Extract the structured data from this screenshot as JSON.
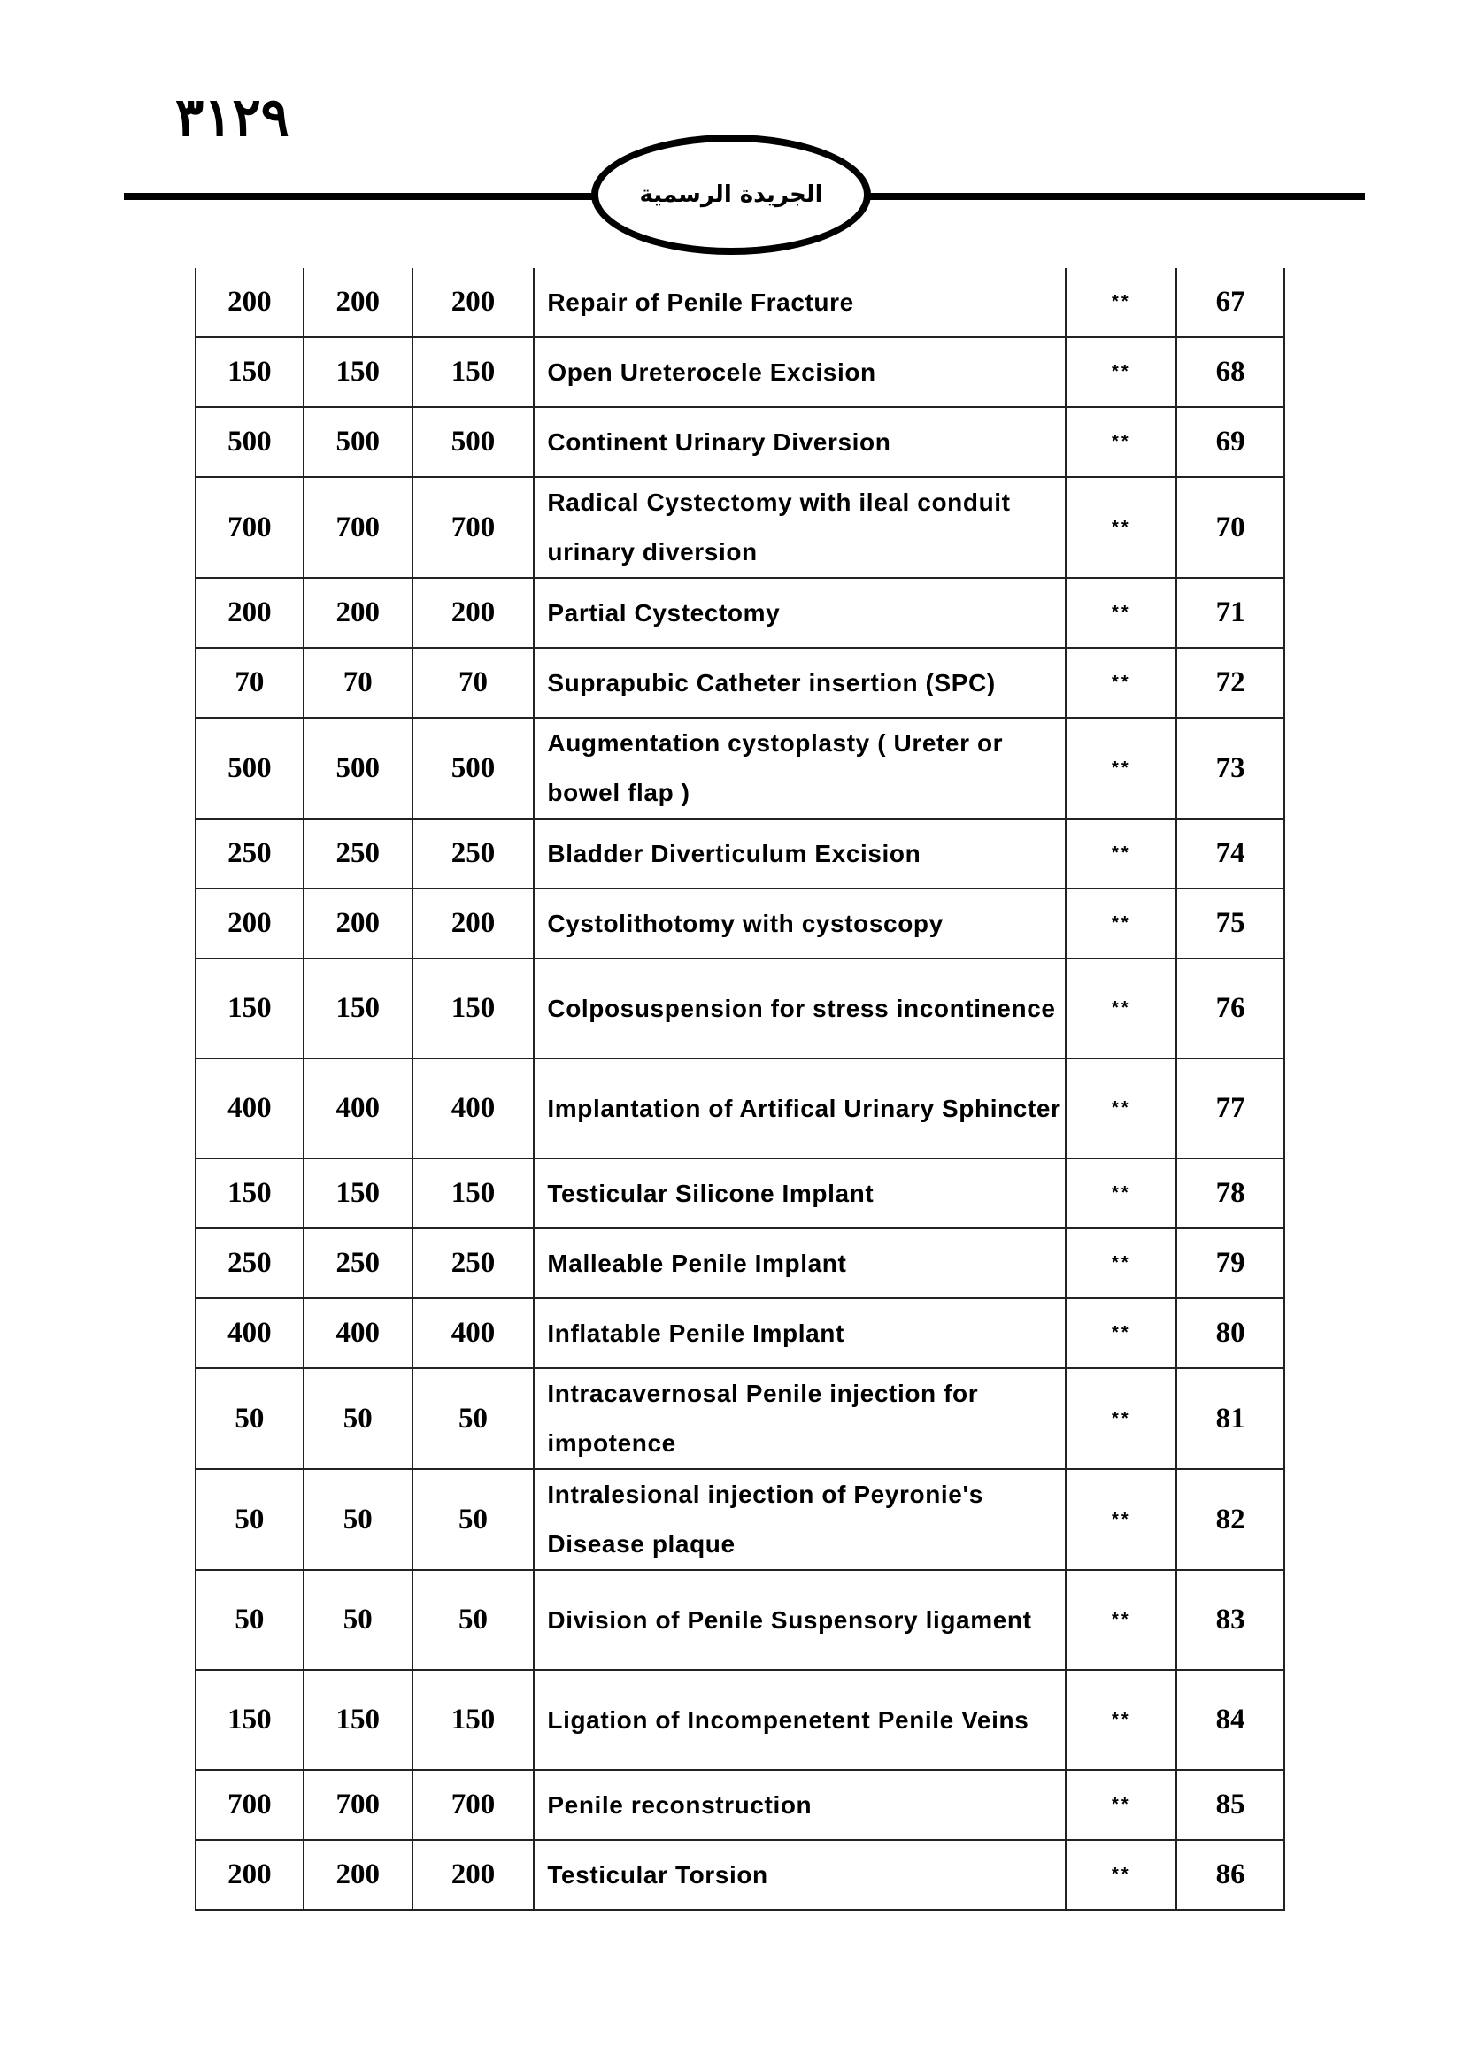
{
  "header": {
    "page_number": "٣١٢٩",
    "gazette_title": "الجريدة الرسمية"
  },
  "table": {
    "rows": [
      {
        "no": "67",
        "mark": "**",
        "name": "Repair of Penile Fracture",
        "c1": "200",
        "c2": "200",
        "c3": "200"
      },
      {
        "no": "68",
        "mark": "**",
        "name": "Open Ureterocele Excision",
        "c1": "150",
        "c2": "150",
        "c3": "150"
      },
      {
        "no": "69",
        "mark": "**",
        "name": "Continent Urinary Diversion",
        "c1": "500",
        "c2": "500",
        "c3": "500"
      },
      {
        "no": "70",
        "mark": "**",
        "name": "Radical Cystectomy with ileal conduit urinary diversion",
        "c1": "700",
        "c2": "700",
        "c3": "700"
      },
      {
        "no": "71",
        "mark": "**",
        "name": "Partial Cystectomy",
        "c1": "200",
        "c2": "200",
        "c3": "200"
      },
      {
        "no": "72",
        "mark": "**",
        "name": "Suprapubic Catheter insertion  (SPC)",
        "c1": "70",
        "c2": "70",
        "c3": "70"
      },
      {
        "no": "73",
        "mark": "**",
        "name": "Augmentation cystoplasty ( Ureter or bowel flap )",
        "c1": "500",
        "c2": "500",
        "c3": "500"
      },
      {
        "no": "74",
        "mark": "**",
        "name": "Bladder Diverticulum Excision",
        "c1": "250",
        "c2": "250",
        "c3": "250"
      },
      {
        "no": "75",
        "mark": "**",
        "name": "Cystolithotomy with cystoscopy",
        "c1": "200",
        "c2": "200",
        "c3": "200"
      },
      {
        "no": "76",
        "mark": "**",
        "name": "Colposuspension for stress incontinence",
        "c1": "150",
        "c2": "150",
        "c3": "150"
      },
      {
        "no": "77",
        "mark": "**",
        "name": "Implantation of Artifical Urinary Sphincter",
        "c1": "400",
        "c2": "400",
        "c3": "400"
      },
      {
        "no": "78",
        "mark": "**",
        "name": "Testicular Silicone Implant",
        "c1": "150",
        "c2": "150",
        "c3": "150"
      },
      {
        "no": "79",
        "mark": "**",
        "name": "Malleable Penile Implant",
        "c1": "250",
        "c2": "250",
        "c3": "250"
      },
      {
        "no": "80",
        "mark": "**",
        "name": "Inflatable Penile Implant",
        "c1": "400",
        "c2": "400",
        "c3": "400"
      },
      {
        "no": "81",
        "mark": "**",
        "name": "Intracavernosal Penile injection for impotence",
        "c1": "50",
        "c2": "50",
        "c3": "50"
      },
      {
        "no": "82",
        "mark": "**",
        "name": "Intralesional injection of Peyronie's Disease plaque",
        "c1": "50",
        "c2": "50",
        "c3": "50"
      },
      {
        "no": "83",
        "mark": "**",
        "name": "Division of Penile Suspensory ligament",
        "c1": "50",
        "c2": "50",
        "c3": "50"
      },
      {
        "no": "84",
        "mark": "**",
        "name": "Ligation of Incompenetent Penile Veins",
        "c1": "150",
        "c2": "150",
        "c3": "150"
      },
      {
        "no": "85",
        "mark": "**",
        "name": "Penile reconstruction",
        "c1": "700",
        "c2": "700",
        "c3": "700"
      },
      {
        "no": "86",
        "mark": "**",
        "name": "Testicular Torsion",
        "c1": "200",
        "c2": "200",
        "c3": "200"
      }
    ]
  }
}
